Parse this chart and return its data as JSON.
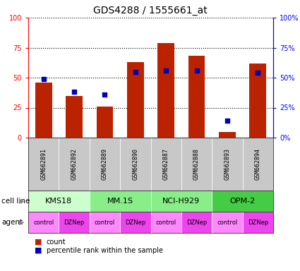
{
  "title": "GDS4288 / 1555661_at",
  "samples": [
    "GSM662891",
    "GSM662892",
    "GSM662889",
    "GSM662890",
    "GSM662887",
    "GSM662888",
    "GSM662893",
    "GSM662894"
  ],
  "count_values": [
    46,
    35,
    26,
    63,
    79,
    68,
    5,
    62
  ],
  "percentile_values": [
    49,
    38,
    36,
    55,
    56,
    56,
    14,
    54
  ],
  "cell_lines": [
    {
      "label": "KMS18",
      "start": 0,
      "end": 2,
      "color": "#ccffcc"
    },
    {
      "label": "MM.1S",
      "start": 2,
      "end": 4,
      "color": "#88ee88"
    },
    {
      "label": "NCI-H929",
      "start": 4,
      "end": 6,
      "color": "#88ee88"
    },
    {
      "label": "OPM-2",
      "start": 6,
      "end": 8,
      "color": "#44cc44"
    }
  ],
  "agents": [
    "control",
    "DZNep",
    "control",
    "DZNep",
    "control",
    "DZNep",
    "control",
    "DZNep"
  ],
  "agent_control_color": "#ff88ff",
  "agent_dznep_color": "#ee44ee",
  "bar_color": "#bb2200",
  "dot_color": "#0000bb",
  "ylim": [
    0,
    100
  ],
  "yticks": [
    0,
    25,
    50,
    75,
    100
  ],
  "ytick_labels_left": [
    "0",
    "25",
    "50",
    "75",
    "100"
  ],
  "ytick_labels_right": [
    "0%",
    "25%",
    "50%",
    "75%",
    "100%"
  ],
  "bar_width": 0.55,
  "title_fontsize": 10,
  "tick_fontsize": 7,
  "sample_fontsize": 6,
  "cellline_fontsize": 8,
  "agent_fontsize": 6,
  "legend_fontsize": 7
}
